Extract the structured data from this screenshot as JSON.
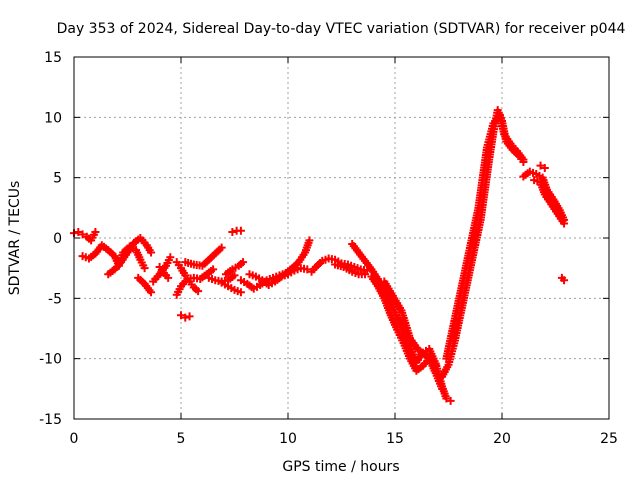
{
  "chart_data": {
    "type": "scatter",
    "title": "Day 353 of 2024, Sidereal Day-to-day VTEC variation (SDTVAR) for receiver p044",
    "xlabel": "GPS time / hours",
    "ylabel": "SDTVAR / TECUs",
    "xlim": [
      0,
      25
    ],
    "ylim": [
      -15,
      15
    ],
    "x_ticks": [
      0,
      5,
      10,
      15,
      20,
      25
    ],
    "y_ticks": [
      -15,
      -10,
      -5,
      0,
      5,
      10,
      15
    ],
    "x_tick_labels": [
      "0",
      "5",
      "10",
      "15",
      "20",
      "25"
    ],
    "y_tick_labels": [
      "-15",
      "-10",
      "-5",
      "0",
      "5",
      "10",
      "15"
    ],
    "grid": true,
    "marker": "plus",
    "series": [
      {
        "name": "SDTVAR",
        "color": "#ff0000",
        "segments": [
          [
            [
              0.0,
              0.4
            ],
            [
              0.2,
              0.5
            ],
            [
              0.4,
              0.3
            ],
            [
              0.6,
              0.1
            ],
            [
              0.8,
              -0.2
            ],
            [
              1.0,
              0.5
            ]
          ],
          [
            [
              0.4,
              -1.5
            ],
            [
              0.7,
              -1.7
            ],
            [
              1.0,
              -1.3
            ],
            [
              1.3,
              -0.6
            ],
            [
              1.6,
              -1.0
            ],
            [
              1.9,
              -1.5
            ],
            [
              2.1,
              -2.3
            ],
            [
              2.3,
              -1.2
            ],
            [
              2.6,
              -0.7
            ],
            [
              2.9,
              -1.0
            ],
            [
              3.1,
              -1.8
            ],
            [
              3.3,
              -2.5
            ]
          ],
          [
            [
              1.6,
              -3.0
            ],
            [
              1.9,
              -2.6
            ],
            [
              2.2,
              -2.0
            ],
            [
              2.5,
              -1.2
            ],
            [
              2.8,
              -0.4
            ],
            [
              3.1,
              0.0
            ],
            [
              3.4,
              -0.6
            ],
            [
              3.6,
              -1.2
            ]
          ],
          [
            [
              3.0,
              -3.3
            ],
            [
              3.3,
              -3.8
            ],
            [
              3.6,
              -4.5
            ]
          ],
          [
            [
              3.7,
              -3.6
            ],
            [
              4.0,
              -3.0
            ],
            [
              4.3,
              -2.3
            ],
            [
              4.5,
              -1.6
            ]
          ],
          [
            [
              4.0,
              -2.4
            ],
            [
              4.2,
              -2.9
            ],
            [
              4.4,
              -3.3
            ]
          ],
          [
            [
              5.0,
              -6.4
            ],
            [
              5.2,
              -6.6
            ],
            [
              5.4,
              -6.5
            ]
          ],
          [
            [
              4.8,
              -2.0
            ],
            [
              5.0,
              -2.5
            ],
            [
              5.2,
              -3.1
            ],
            [
              5.4,
              -3.6
            ],
            [
              5.6,
              -4.1
            ],
            [
              5.8,
              -4.4
            ]
          ],
          [
            [
              4.8,
              -4.7
            ],
            [
              5.0,
              -4.0
            ],
            [
              5.3,
              -3.4
            ],
            [
              5.6,
              -3.3
            ],
            [
              5.9,
              -3.4
            ],
            [
              6.2,
              -3.0
            ],
            [
              6.5,
              -2.6
            ]
          ],
          [
            [
              5.2,
              -2.0
            ],
            [
              5.6,
              -2.2
            ],
            [
              6.0,
              -2.3
            ],
            [
              6.3,
              -1.8
            ],
            [
              6.6,
              -1.3
            ],
            [
              6.9,
              -0.8
            ]
          ],
          [
            [
              6.3,
              -3.3
            ],
            [
              6.6,
              -3.5
            ],
            [
              6.9,
              -3.6
            ],
            [
              7.2,
              -3.5
            ],
            [
              7.5,
              -3.1
            ]
          ],
          [
            [
              6.9,
              -3.7
            ],
            [
              7.2,
              -4.0
            ],
            [
              7.5,
              -4.3
            ],
            [
              7.8,
              -4.5
            ]
          ],
          [
            [
              7.1,
              -3.0
            ],
            [
              7.4,
              -2.6
            ],
            [
              7.7,
              -2.3
            ],
            [
              7.9,
              -2.0
            ]
          ],
          [
            [
              7.4,
              0.5
            ],
            [
              7.6,
              0.6
            ],
            [
              7.8,
              0.6
            ]
          ],
          [
            [
              7.8,
              -3.5
            ],
            [
              8.1,
              -3.8
            ],
            [
              8.4,
              -4.2
            ],
            [
              8.7,
              -3.9
            ],
            [
              9.0,
              -3.5
            ],
            [
              9.3,
              -3.3
            ],
            [
              9.6,
              -3.1
            ],
            [
              9.9,
              -2.9
            ],
            [
              10.2,
              -2.5
            ],
            [
              10.5,
              -2.0
            ],
            [
              10.8,
              -1.2
            ],
            [
              11.0,
              -0.2
            ]
          ],
          [
            [
              8.2,
              -3.0
            ],
            [
              8.5,
              -3.2
            ],
            [
              8.8,
              -3.5
            ],
            [
              9.1,
              -3.9
            ],
            [
              9.4,
              -3.6
            ],
            [
              9.7,
              -3.2
            ],
            [
              10.0,
              -3.0
            ]
          ],
          [
            [
              10.0,
              -3.0
            ],
            [
              10.3,
              -2.7
            ],
            [
              10.6,
              -2.5
            ],
            [
              10.9,
              -2.6
            ],
            [
              11.1,
              -2.8
            ],
            [
              11.3,
              -2.4
            ],
            [
              11.6,
              -1.9
            ],
            [
              11.9,
              -1.7
            ],
            [
              12.2,
              -1.8
            ],
            [
              12.5,
              -2.1
            ],
            [
              12.8,
              -2.2
            ],
            [
              13.1,
              -2.4
            ],
            [
              13.4,
              -2.6
            ],
            [
              13.7,
              -2.7
            ]
          ],
          [
            [
              12.2,
              -2.2
            ],
            [
              12.6,
              -2.4
            ],
            [
              13.0,
              -2.8
            ],
            [
              13.3,
              -3.0
            ],
            [
              13.6,
              -3.0
            ]
          ],
          [
            [
              13.0,
              -0.5
            ],
            [
              13.3,
              -1.2
            ],
            [
              13.6,
              -1.9
            ],
            [
              13.9,
              -2.6
            ],
            [
              14.2,
              -3.4
            ],
            [
              14.5,
              -4.2
            ],
            [
              14.8,
              -5.3
            ],
            [
              15.1,
              -6.6
            ],
            [
              15.4,
              -7.8
            ],
            [
              15.7,
              -9.0
            ],
            [
              16.0,
              -10.3
            ],
            [
              16.3,
              -9.5
            ],
            [
              16.6,
              -9.2
            ],
            [
              16.9,
              -10.4
            ],
            [
              17.2,
              -12.3
            ],
            [
              17.4,
              -13.3
            ],
            [
              17.6,
              -13.5
            ]
          ],
          [
            [
              13.9,
              -3.2
            ],
            [
              14.2,
              -4.0
            ],
            [
              14.5,
              -5.0
            ],
            [
              14.8,
              -6.4
            ],
            [
              15.1,
              -7.6
            ],
            [
              15.4,
              -8.7
            ],
            [
              15.7,
              -10.0
            ],
            [
              16.0,
              -11.0
            ],
            [
              16.3,
              -10.6
            ],
            [
              16.6,
              -10.0
            ],
            [
              16.9,
              -11.2
            ],
            [
              17.2,
              -12.5
            ]
          ],
          [
            [
              14.5,
              -3.6
            ],
            [
              14.9,
              -4.8
            ],
            [
              15.3,
              -6.0
            ],
            [
              15.7,
              -8.3
            ],
            [
              16.1,
              -9.3
            ],
            [
              16.5,
              -9.8
            ],
            [
              16.9,
              -10.5
            ]
          ],
          [
            [
              17.2,
              -11.5
            ],
            [
              17.5,
              -10.5
            ],
            [
              17.8,
              -8.5
            ],
            [
              18.1,
              -6.0
            ],
            [
              18.4,
              -3.5
            ],
            [
              18.7,
              -1.0
            ],
            [
              19.0,
              1.5
            ],
            [
              19.2,
              4.0
            ],
            [
              19.4,
              6.5
            ],
            [
              19.6,
              8.8
            ],
            [
              19.8,
              10.6
            ],
            [
              20.0,
              9.7
            ],
            [
              20.2,
              8.0
            ],
            [
              20.5,
              7.3
            ],
            [
              20.8,
              6.8
            ],
            [
              21.0,
              6.3
            ]
          ],
          [
            [
              17.4,
              -10.0
            ],
            [
              17.7,
              -7.5
            ],
            [
              18.0,
              -5.0
            ],
            [
              18.3,
              -2.5
            ],
            [
              18.6,
              0.0
            ],
            [
              18.9,
              2.5
            ],
            [
              19.1,
              5.0
            ],
            [
              19.3,
              7.5
            ],
            [
              19.6,
              9.5
            ],
            [
              19.9,
              10.2
            ],
            [
              20.1,
              8.6
            ],
            [
              20.4,
              7.8
            ],
            [
              20.7,
              7.2
            ],
            [
              21.0,
              6.5
            ]
          ],
          [
            [
              21.0,
              5.1
            ],
            [
              21.3,
              5.5
            ],
            [
              21.6,
              5.3
            ],
            [
              21.9,
              5.0
            ],
            [
              22.1,
              4.0
            ],
            [
              22.4,
              3.2
            ],
            [
              22.7,
              2.3
            ],
            [
              22.9,
              1.5
            ]
          ],
          [
            [
              21.5,
              4.8
            ],
            [
              21.8,
              4.6
            ],
            [
              22.0,
              3.6
            ],
            [
              22.3,
              2.8
            ],
            [
              22.6,
              2.0
            ],
            [
              22.9,
              1.2
            ]
          ],
          [
            [
              21.8,
              6.0
            ],
            [
              22.0,
              5.8
            ]
          ],
          [
            [
              22.8,
              -3.3
            ],
            [
              22.9,
              -3.5
            ]
          ]
        ]
      }
    ]
  }
}
